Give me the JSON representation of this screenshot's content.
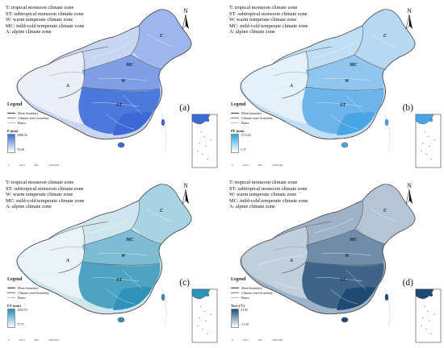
{
  "zone_legend": [
    "T: tropical monsoon climate zone",
    "ST: subtropical monsoon climate zone",
    "W: warm temperate climate zone",
    "MC: mild-cold temperate climate zone",
    "A: alpine climate zone"
  ],
  "north_label": "N",
  "zone_tags": {
    "C": "C",
    "MC": "MC",
    "W": "W",
    "A": "A",
    "ST": "ST"
  },
  "legend": {
    "title": "Legend",
    "items": [
      "Main boundary",
      "Climate zone boundary",
      "Basin"
    ]
  },
  "scale_ticks": [
    "0",
    "412.5",
    "825",
    "1,650 KM"
  ],
  "panels": [
    {
      "letter": "(a)",
      "variable": "P (mm)",
      "max": "2888.36",
      "min": "76.68",
      "ramp_top": "#3a6fd8",
      "ramp_bottom": "#ffffff",
      "colors": {
        "west": "#e9eef9",
        "north": "#c9d6f2",
        "ne": "#9db6ec",
        "central": "#7f9ee6",
        "south": "#4d79dc",
        "coast": "#3d68d6"
      },
      "show_zone_legend": true
    },
    {
      "letter": "(b)",
      "variable": "PE (mm)",
      "max": "1374.42",
      "min": "1.37",
      "ramp_top": "#27a4e6",
      "ramp_bottom": "#ffffff",
      "colors": {
        "west": "#e4f1fb",
        "north": "#c0dff5",
        "ne": "#b6d8f3",
        "central": "#8fc5ee",
        "south": "#6cb4ea",
        "coast": "#4aa5e5"
      },
      "show_zone_legend": true
    },
    {
      "letter": "(c)",
      "variable": "ET (mm)",
      "max": "1694.53",
      "min": "75.71",
      "ramp_top": "#1d8fb7",
      "ramp_bottom": "#ffffff",
      "colors": {
        "west": "#eaf4f8",
        "north": "#cfe6ef",
        "ne": "#a9d3e2",
        "central": "#7dbdd3",
        "south": "#4fa3c2",
        "coast": "#2f92b8"
      },
      "show_zone_legend": true
    },
    {
      "letter": "(d)",
      "variable": "Tave (°C)",
      "max": "23.00",
      "min": "-11.59",
      "ramp_top": "#1f4e7a",
      "ramp_bottom": "#ffffff",
      "colors": {
        "west": "#c2cfdd",
        "north": "#9fb3c8",
        "ne": "#b5c5d5",
        "central": "#6f8cab",
        "south": "#3f6488",
        "coast": "#1f4a73"
      },
      "show_zone_legend": true
    }
  ]
}
